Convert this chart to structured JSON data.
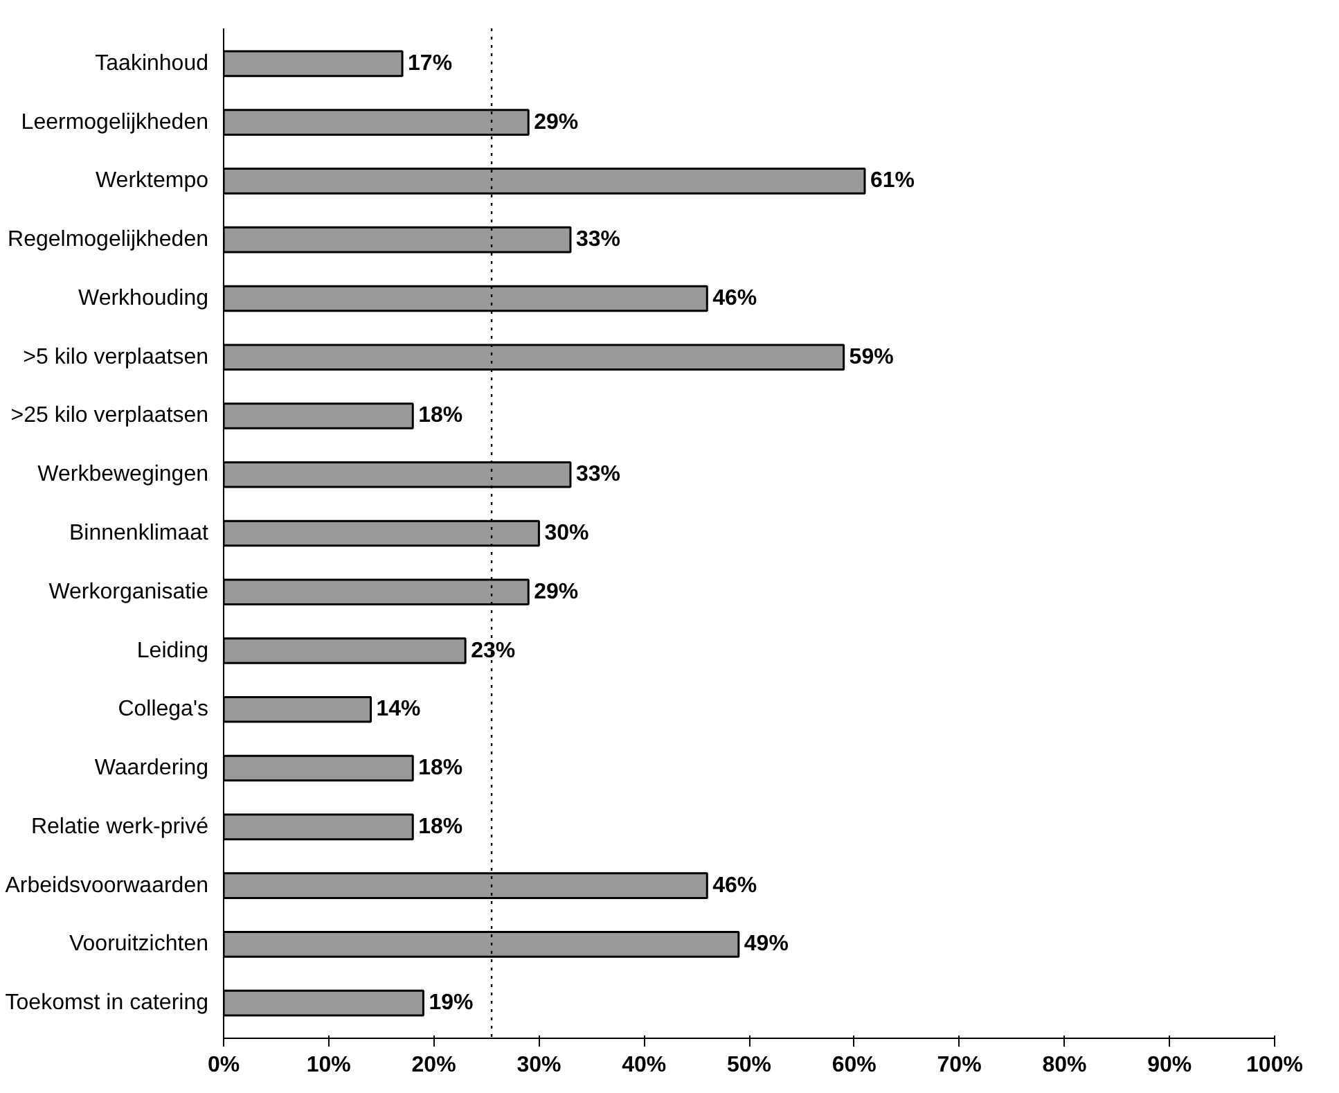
{
  "chart_data": {
    "type": "bar",
    "orientation": "horizontal",
    "categories": [
      "Taakinhoud",
      "Leermogelijkheden",
      "Werktempo",
      "Regelmogelijkheden",
      "Werkhouding",
      ">5 kilo verplaatsen",
      ">25 kilo verplaatsen",
      "Werkbewegingen",
      "Binnenklimaat",
      "Werkorganisatie",
      "Leiding",
      "Collega's",
      "Waardering",
      "Relatie werk-privé",
      "Arbeidsvoorwaarden",
      "Vooruitzichten",
      "Toekomst in catering"
    ],
    "values": [
      17,
      29,
      61,
      33,
      46,
      59,
      18,
      33,
      30,
      29,
      23,
      14,
      18,
      18,
      46,
      49,
      19
    ],
    "value_labels": [
      "17%",
      "29%",
      "61%",
      "33%",
      "46%",
      "59%",
      "18%",
      "33%",
      "30%",
      "29%",
      "23%",
      "14%",
      "18%",
      "18%",
      "46%",
      "49%",
      "19%"
    ],
    "color": "#9a9a9a",
    "xlim": [
      0,
      100
    ],
    "xticks": [
      {
        "value": 0,
        "label": "0%"
      },
      {
        "value": 10,
        "label": "10%"
      },
      {
        "value": 20,
        "label": "20%"
      },
      {
        "value": 30,
        "label": "30%"
      },
      {
        "value": 40,
        "label": "40%"
      },
      {
        "value": 50,
        "label": "50%"
      },
      {
        "value": 60,
        "label": "60%"
      },
      {
        "value": 70,
        "label": "70%"
      },
      {
        "value": 80,
        "label": "80%"
      },
      {
        "value": 90,
        "label": "90%"
      },
      {
        "value": 100,
        "label": "100%"
      }
    ],
    "ref_lines": [
      {
        "axis": "x",
        "value": 25.5,
        "label": null,
        "color": "#000000",
        "line_style": "dotted"
      }
    ],
    "grid": false
  }
}
